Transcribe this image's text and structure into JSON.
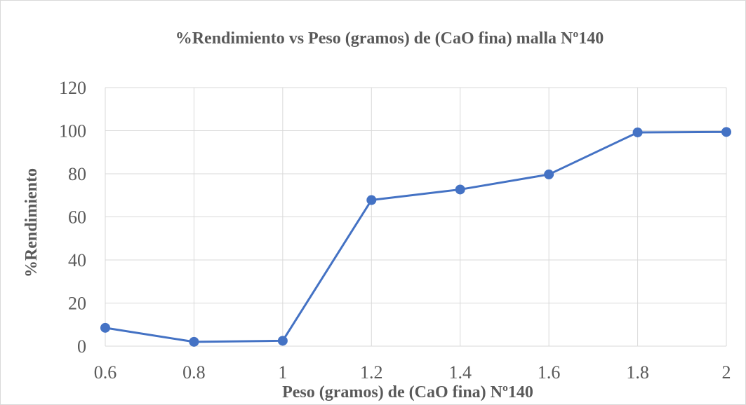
{
  "chart_data": {
    "type": "line",
    "title": "%Rendimiento vs Peso (gramos) de (CaO fina) malla Nº140",
    "xlabel": "Peso (gramos) de (CaO fina) Nº140",
    "ylabel": "%Rendimiento",
    "categories": [
      "0.6",
      "0.8",
      "1",
      "1.2",
      "1.4",
      "1.6",
      "1.8",
      "2"
    ],
    "series": [
      {
        "values": [
          8.5,
          2.0,
          2.5,
          67.8,
          72.7,
          79.7,
          99.2,
          99.4
        ]
      }
    ],
    "ylim": [
      0,
      120
    ],
    "yticks": [
      "0",
      "20",
      "40",
      "60",
      "80",
      "100",
      "120"
    ],
    "grid": true,
    "legend": "none",
    "colors": {
      "line": "#4472c4",
      "marker": "#4472c4",
      "grid": "#d9d9d9",
      "text": "#595959"
    }
  }
}
